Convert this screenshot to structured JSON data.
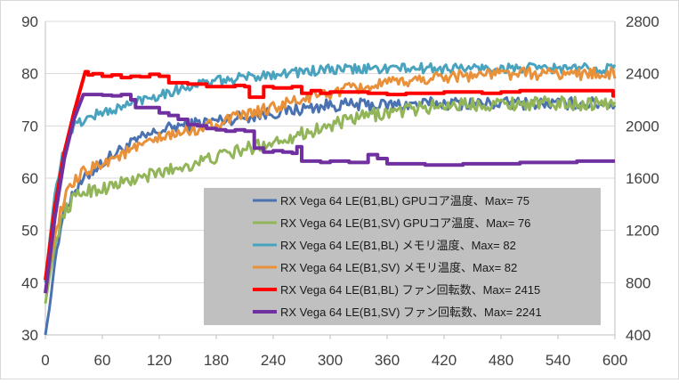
{
  "chart_data": {
    "type": "line",
    "x_ticks": [
      "0",
      "60",
      "120",
      "180",
      "240",
      "300",
      "360",
      "420",
      "480",
      "540",
      "600"
    ],
    "xlim": [
      0,
      600
    ],
    "y_left_ticks": [
      "30",
      "40",
      "50",
      "60",
      "70",
      "80",
      "90"
    ],
    "ylim_left": [
      30,
      90
    ],
    "y_right_ticks": [
      "400",
      "800",
      "1200",
      "1600",
      "2000",
      "2400",
      "2800"
    ],
    "ylim_right": [
      400,
      2800
    ],
    "grid": "horizontal",
    "legend_position": "lower-right inside plot",
    "series": [
      {
        "name": "RX Vega 64 LE(B1,BL) GPUコア温度、Max= 75",
        "axis": "left",
        "color": "#4a72b0",
        "width": 3,
        "x": [
          0,
          5,
          10,
          15,
          20,
          30,
          40,
          50,
          60,
          80,
          100,
          120,
          140,
          160,
          180,
          200,
          220,
          240,
          260,
          280,
          300,
          320,
          340,
          360,
          420,
          480,
          540,
          600
        ],
        "values": [
          30,
          36,
          44,
          50,
          54,
          57.5,
          59.5,
          61.5,
          63,
          65.5,
          67.5,
          69,
          70,
          70.5,
          71,
          71.5,
          72,
          72.5,
          73,
          73.5,
          74,
          74,
          74,
          74,
          74.3,
          74.3,
          74.3,
          74.3
        ],
        "jitter": 1.2
      },
      {
        "name": "RX Vega 64 LE(B1,SV) GPUコア温度、Max= 76",
        "axis": "left",
        "color": "#92b55a",
        "width": 3,
        "x": [
          0,
          5,
          10,
          15,
          20,
          30,
          40,
          60,
          80,
          100,
          120,
          140,
          160,
          180,
          200,
          220,
          240,
          260,
          280,
          300,
          320,
          340,
          360,
          380,
          400,
          420,
          480,
          540,
          600
        ],
        "values": [
          36,
          42,
          47,
          51,
          53.5,
          56,
          57.5,
          58,
          59,
          60,
          61,
          62,
          63,
          64,
          65,
          66,
          67,
          68,
          69,
          70,
          71,
          72,
          72.5,
          73,
          73.5,
          74,
          74.3,
          74.3,
          74.3
        ],
        "jitter": 1.3
      },
      {
        "name": "RX Vega 64 LE(B1,BL) メモリ温度、Max= 82",
        "axis": "left",
        "color": "#4aa3be",
        "width": 3,
        "x": [
          0,
          5,
          10,
          15,
          20,
          25,
          30,
          40,
          50,
          60,
          80,
          100,
          120,
          140,
          160,
          180,
          200,
          240,
          300,
          360,
          420,
          480,
          540,
          600
        ],
        "values": [
          40,
          49,
          57,
          62,
          65.5,
          68,
          70,
          71,
          72,
          72.5,
          73.5,
          75,
          76,
          77,
          78,
          78.5,
          79,
          80,
          80.7,
          81,
          81,
          81,
          81,
          81
        ],
        "jitter": 1.0
      },
      {
        "name": "RX Vega 64 LE(B1,SV) メモリ温度、Max= 82",
        "axis": "left",
        "color": "#e8913a",
        "width": 3,
        "x": [
          0,
          5,
          10,
          15,
          20,
          30,
          40,
          50,
          60,
          80,
          100,
          120,
          140,
          160,
          180,
          200,
          220,
          240,
          260,
          280,
          300,
          320,
          340,
          360,
          380,
          400,
          420,
          480,
          540,
          600
        ],
        "values": [
          38,
          44,
          49,
          53,
          56,
          59,
          61,
          62,
          63,
          64.5,
          66,
          67.5,
          68.5,
          69.5,
          70.5,
          71.5,
          72.5,
          73.5,
          74.5,
          75.5,
          76.3,
          77,
          77.5,
          78,
          78.5,
          79,
          79.5,
          80,
          80,
          80
        ],
        "jitter": 1.2
      },
      {
        "name": "RX Vega 64 LE(B1,BL) ファン回転数、Max= 2415",
        "axis": "right",
        "color": "#ff0000",
        "width": 4,
        "x": [
          0,
          10,
          20,
          30,
          42,
          45,
          50,
          60,
          70,
          80,
          90,
          100,
          110,
          120,
          130,
          140,
          150,
          160,
          170,
          180,
          190,
          200,
          210,
          215,
          230,
          240,
          260,
          270,
          280,
          290,
          300,
          320,
          340,
          360,
          380,
          400,
          420,
          440,
          460,
          480,
          500,
          520,
          540,
          560,
          580,
          595,
          598,
          600
        ],
        "values": [
          820,
          1380,
          1800,
          2100,
          2415,
          2390,
          2400,
          2380,
          2390,
          2370,
          2380,
          2375,
          2395,
          2380,
          2330,
          2330,
          2320,
          2320,
          2300,
          2300,
          2300,
          2310,
          2300,
          2220,
          2300,
          2290,
          2300,
          2250,
          2270,
          2250,
          2260,
          2260,
          2250,
          2240,
          2250,
          2250,
          2260,
          2260,
          2250,
          2260,
          2270,
          2270,
          2270,
          2270,
          2270,
          2270,
          2230,
          2230
        ],
        "jitter": 0
      },
      {
        "name": "RX Vega 64 LE(B1,SV) ファン回転数、Max= 2241",
        "axis": "right",
        "color": "#7030a0",
        "width": 4,
        "x": [
          0,
          10,
          20,
          30,
          40,
          50,
          60,
          70,
          80,
          90,
          95,
          100,
          110,
          120,
          130,
          140,
          150,
          160,
          170,
          180,
          190,
          200,
          210,
          220,
          230,
          240,
          250,
          260,
          265,
          270,
          280,
          290,
          300,
          320,
          340,
          350,
          360,
          380,
          400,
          420,
          440,
          460,
          480,
          500,
          520,
          540,
          560,
          580,
          600
        ],
        "values": [
          720,
          1300,
          1750,
          2050,
          2240,
          2240,
          2235,
          2230,
          2240,
          2200,
          2140,
          2140,
          2140,
          2100,
          2080,
          2050,
          2010,
          2000,
          1980,
          1970,
          1960,
          1970,
          1960,
          1830,
          1800,
          1810,
          1800,
          1790,
          1840,
          1730,
          1730,
          1720,
          1730,
          1720,
          1780,
          1750,
          1710,
          1710,
          1700,
          1700,
          1710,
          1710,
          1710,
          1720,
          1720,
          1720,
          1730,
          1730,
          1730
        ],
        "jitter": 0
      }
    ]
  }
}
